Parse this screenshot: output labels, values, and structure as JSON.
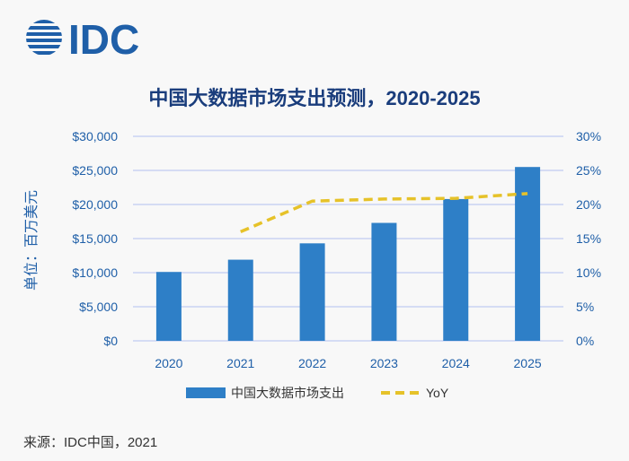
{
  "brand": {
    "name": "IDC",
    "color": "#1f5fa8"
  },
  "source_note": "来源：IDC中国，2021",
  "chart_data": {
    "type": "bar",
    "title": "中国大数据市场支出预测，2020-2025",
    "ylabel": "单位：百万美元",
    "categories": [
      "2020",
      "2021",
      "2022",
      "2023",
      "2024",
      "2025"
    ],
    "y_ticks": [
      "$0",
      "$5,000",
      "$10,000",
      "$15,000",
      "$20,000",
      "$25,000",
      "$30,000"
    ],
    "y2_ticks": [
      "0%",
      "5%",
      "10%",
      "15%",
      "20%",
      "25%",
      "30%"
    ],
    "ylim": [
      0,
      30000
    ],
    "y2lim": [
      0,
      30
    ],
    "grid": true,
    "legend_position": "bottom",
    "series": [
      {
        "name": "中国大数据市场支出",
        "type": "bar",
        "axis": "left",
        "color": "#2e7fc7",
        "values": [
          10100,
          11900,
          14300,
          17300,
          20800,
          25500
        ]
      },
      {
        "name": "YoY",
        "type": "line",
        "style": "dashed",
        "axis": "right",
        "color": "#e6c229",
        "values": [
          null,
          16,
          20.5,
          20.8,
          20.9,
          21.6
        ]
      }
    ]
  }
}
